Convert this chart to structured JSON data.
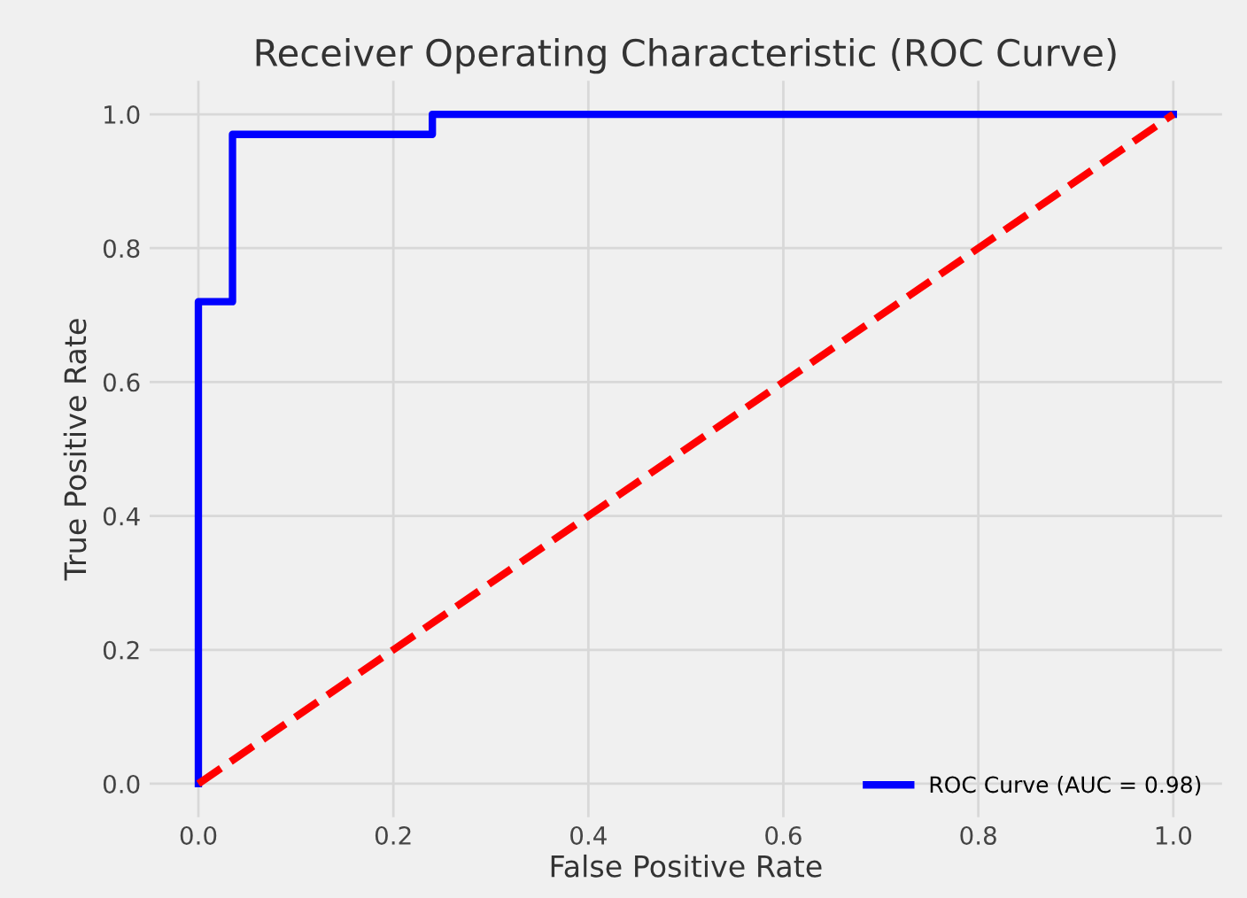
{
  "chart_data": {
    "type": "line",
    "title": "Receiver Operating Characteristic (ROC Curve)",
    "xlabel": "False Positive Rate",
    "ylabel": "True Positive Rate",
    "series": [
      {
        "name": "ROC Curve (AUC = 0.98)",
        "color": "#0000ff",
        "x": [
          0,
          0,
          0.035,
          0.035,
          0.24,
          0.24,
          1.0
        ],
        "values": [
          0,
          0.72,
          0.72,
          0.97,
          0.97,
          1.0,
          1.0
        ],
        "line_style": "solid"
      },
      {
        "color": "#ff0000",
        "x": [
          0,
          1
        ],
        "values": [
          0,
          1
        ],
        "line_style": "dashed"
      }
    ],
    "xlim": [
      -0.05,
      1.05
    ],
    "ylim": [
      -0.05,
      1.05
    ],
    "xticks": [
      {
        "value": 0,
        "label": "0.0"
      },
      0.2,
      0.4,
      0.6,
      0.8,
      {
        "value": 1,
        "label": "1.0"
      }
    ],
    "yticks": [
      {
        "value": 0,
        "label": "0.0"
      },
      0.2,
      0.4,
      0.6,
      0.8,
      {
        "value": 1,
        "label": "1.0"
      }
    ],
    "grid": true,
    "legend": "lower right",
    "marker": "none"
  }
}
